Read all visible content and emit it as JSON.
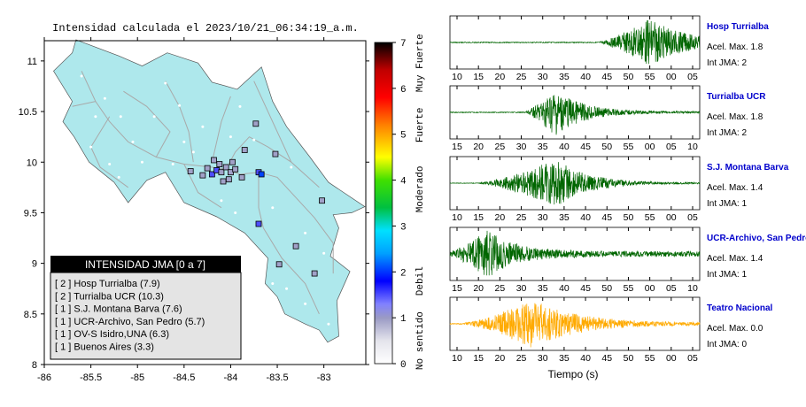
{
  "map": {
    "title": "Intensidad calculada el 2023/10/21_06:34:19_a.m.",
    "xlim": [
      -86,
      -82.55
    ],
    "ylim": [
      8,
      11.2
    ],
    "xticks": [
      "-86",
      "-85.5",
      "-85",
      "-84.5",
      "-84",
      "-83.5",
      "-83"
    ],
    "yticks": [
      "8",
      "8.5",
      "9",
      "9.5",
      "10",
      "10.5",
      "11"
    ],
    "colors": {
      "land": "#aee8ec",
      "road": "#a9a9a9",
      "coast": "#555555",
      "legend_header_bg": "#000000",
      "legend_body_bg": "#e4e4e4"
    },
    "legend": {
      "header": "INTENSIDAD JMA [0 a 7]",
      "items": [
        "[ 2 ] Hosp Turrialba (7.9)",
        "[ 2 ] Turrialba UCR (10.3)",
        "[ 1 ] S.J. Montana Barva (7.6)",
        "[ 1 ] UCR-Archivo, San Pedro (5.7)",
        "[ 1 ] OV-S Isidro,UNA (6.3)",
        "[ 1 ] Buenos Aires (3.3)"
      ]
    },
    "stations": [
      {
        "lon": -84.2,
        "lat": 9.88,
        "level": 2
      },
      {
        "lon": -84.15,
        "lat": 9.92,
        "level": 2
      },
      {
        "lon": -84.1,
        "lat": 9.9,
        "level": 1
      },
      {
        "lon": -84.05,
        "lat": 9.95,
        "level": 1
      },
      {
        "lon": -84.0,
        "lat": 9.9,
        "level": 1
      },
      {
        "lon": -83.95,
        "lat": 9.93,
        "level": 1
      },
      {
        "lon": -83.88,
        "lat": 9.85,
        "level": 1
      },
      {
        "lon": -84.12,
        "lat": 9.98,
        "level": 1
      },
      {
        "lon": -84.25,
        "lat": 9.94,
        "level": 1
      },
      {
        "lon": -84.3,
        "lat": 9.87,
        "level": 1
      },
      {
        "lon": -83.7,
        "lat": 9.9,
        "level": 2
      },
      {
        "lon": -83.67,
        "lat": 9.88,
        "level": 3
      },
      {
        "lon": -84.02,
        "lat": 9.83,
        "level": 1
      },
      {
        "lon": -84.08,
        "lat": 9.81,
        "level": 1
      },
      {
        "lon": -83.98,
        "lat": 10.0,
        "level": 1
      },
      {
        "lon": -84.18,
        "lat": 10.02,
        "level": 1
      },
      {
        "lon": -84.43,
        "lat": 9.91,
        "level": 1
      },
      {
        "lon": -83.73,
        "lat": 10.38,
        "level": 1
      },
      {
        "lon": -83.85,
        "lat": 10.12,
        "level": 1
      },
      {
        "lon": -83.52,
        "lat": 10.08,
        "level": 1
      },
      {
        "lon": -83.02,
        "lat": 9.62,
        "level": 1
      },
      {
        "lon": -83.7,
        "lat": 9.39,
        "level": 2
      },
      {
        "lon": -83.3,
        "lat": 9.17,
        "level": 1
      },
      {
        "lon": -83.48,
        "lat": 8.99,
        "level": 1
      },
      {
        "lon": -83.1,
        "lat": 8.9,
        "level": 1
      }
    ],
    "landmarks": [
      {
        "lon": -85.6,
        "lat": 10.85
      },
      {
        "lon": -85.35,
        "lat": 10.63
      },
      {
        "lon": -85.18,
        "lat": 10.45
      },
      {
        "lon": -84.82,
        "lat": 10.45
      },
      {
        "lon": -84.55,
        "lat": 10.56
      },
      {
        "lon": -84.3,
        "lat": 10.35
      },
      {
        "lon": -85.5,
        "lat": 10.15
      },
      {
        "lon": -85.3,
        "lat": 9.98
      },
      {
        "lon": -84.95,
        "lat": 10.0
      },
      {
        "lon": -84.62,
        "lat": 9.98
      },
      {
        "lon": -84.4,
        "lat": 10.1
      },
      {
        "lon": -84.0,
        "lat": 10.25
      },
      {
        "lon": -83.9,
        "lat": 10.55
      },
      {
        "lon": -84.7,
        "lat": 10.78
      },
      {
        "lon": -85.05,
        "lat": 10.2
      },
      {
        "lon": -84.5,
        "lat": 10.2
      },
      {
        "lon": -83.75,
        "lat": 10.22
      },
      {
        "lon": -83.35,
        "lat": 9.95
      },
      {
        "lon": -84.1,
        "lat": 9.62
      },
      {
        "lon": -83.95,
        "lat": 9.5
      },
      {
        "lon": -83.55,
        "lat": 9.55
      },
      {
        "lon": -83.2,
        "lat": 9.3
      },
      {
        "lon": -83.0,
        "lat": 9.1
      },
      {
        "lon": -83.4,
        "lat": 8.75
      },
      {
        "lon": -83.2,
        "lat": 8.6
      },
      {
        "lon": -82.95,
        "lat": 8.4
      },
      {
        "lon": -83.55,
        "lat": 8.8
      },
      {
        "lon": -84.6,
        "lat": 9.7
      },
      {
        "lon": -85.2,
        "lat": 9.85
      },
      {
        "lon": -85.45,
        "lat": 10.45
      }
    ]
  },
  "colorbar": {
    "levels": [
      "0",
      "1",
      "2",
      "3",
      "4",
      "5",
      "6",
      "7"
    ],
    "labels": [
      {
        "text": "No sentido",
        "at": 0.5
      },
      {
        "text": "Debil",
        "at": 1.8
      },
      {
        "text": "Moderado",
        "at": 3.8
      },
      {
        "text": "Fuerte",
        "at": 5.2
      },
      {
        "text": "Muy Fuerte",
        "at": 6.55
      }
    ],
    "stops": [
      {
        "v": 0,
        "c": "#ffffff"
      },
      {
        "v": 0.5,
        "c": "#e4e4ec"
      },
      {
        "v": 1.0,
        "c": "#9a9ac4"
      },
      {
        "v": 1.3,
        "c": "#8080ff"
      },
      {
        "v": 1.8,
        "c": "#0000ff"
      },
      {
        "v": 2.4,
        "c": "#00a0ff"
      },
      {
        "v": 2.9,
        "c": "#00e0ff"
      },
      {
        "v": 3.4,
        "c": "#00c040"
      },
      {
        "v": 4.0,
        "c": "#40e000"
      },
      {
        "v": 4.5,
        "c": "#ffff00"
      },
      {
        "v": 5.2,
        "c": "#ff8000"
      },
      {
        "v": 5.8,
        "c": "#ff0000"
      },
      {
        "v": 6.4,
        "c": "#c00000"
      },
      {
        "v": 7.0,
        "c": "#000000"
      }
    ]
  },
  "seismograms": {
    "xlabel": "Tiempo (s)",
    "label_color": "#0000cc",
    "panels": [
      {
        "station": "Hosp Turrialba",
        "accel": "Acel. Max. 1.8",
        "jma": "Int JMA: 2",
        "color": "#006600",
        "ticks": [
          "10",
          "15",
          "20",
          "25",
          "30",
          "35",
          "40",
          "45",
          "50",
          "55",
          "00",
          "05"
        ],
        "onset": 0.6,
        "peak": 0.2,
        "decay": 0.14,
        "amp": 0.92,
        "pre": 0.035
      },
      {
        "station": "Turrialba UCR",
        "accel": "Acel. Max. 1.8",
        "jma": "Int JMA: 2",
        "color": "#006600",
        "ticks": [
          "15",
          "20",
          "25",
          "30",
          "35",
          "40",
          "45",
          "50",
          "55",
          "00",
          "05",
          "10"
        ],
        "onset": 0.3,
        "peak": 0.12,
        "decay": 0.11,
        "amp": 0.9,
        "pre": 0.03
      },
      {
        "station": "S.J. Montana Barva",
        "accel": "Acel. Max. 1.4",
        "jma": "Int JMA: 1",
        "color": "#006600",
        "ticks": [
          "10",
          "15",
          "20",
          "25",
          "30",
          "35",
          "40",
          "45",
          "50",
          "55",
          "00",
          "05"
        ],
        "onset": 0.12,
        "peak": 0.31,
        "decay": 0.12,
        "amp": 0.92,
        "pre": 0.02
      },
      {
        "station": "UCR-Archivo, San Pedro",
        "accel": "Acel. Max. 1.4",
        "jma": "Int JMA: 1",
        "color": "#006600",
        "ticks": [
          "15",
          "20",
          "25",
          "30",
          "35",
          "40",
          "45",
          "50",
          "55",
          "00",
          "05",
          "10"
        ],
        "onset": 0.0,
        "peak": 0.15,
        "decay": 0.11,
        "amp": 0.92,
        "pre": 0.1
      },
      {
        "station": "Teatro Nacional",
        "accel": "Acel. Max. 0.0",
        "jma": "Int JMA: 0",
        "color": "#ffaa00",
        "ticks": [
          "10",
          "15",
          "20",
          "25",
          "30",
          "35",
          "40",
          "45",
          "50",
          "55",
          "00",
          "05"
        ],
        "onset": 0.06,
        "peak": 0.27,
        "decay": 0.18,
        "amp": 0.92,
        "pre": 0.04
      }
    ]
  }
}
